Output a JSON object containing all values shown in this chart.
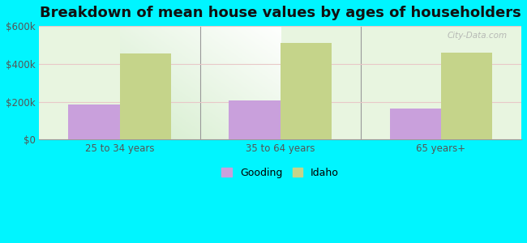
{
  "title": "Breakdown of mean house values by ages of householders",
  "categories": [
    "25 to 34 years",
    "35 to 64 years",
    "65 years+"
  ],
  "gooding_values": [
    185000,
    205000,
    163000
  ],
  "idaho_values": [
    455000,
    510000,
    460000
  ],
  "gooding_color": "#c9a0dc",
  "idaho_color": "#c5d48a",
  "ylim": [
    0,
    600000
  ],
  "yticks": [
    0,
    200000,
    400000,
    600000
  ],
  "ytick_labels": [
    "$0",
    "$200k",
    "$400k",
    "$600k"
  ],
  "legend_labels": [
    "Gooding",
    "Idaho"
  ],
  "background_color": "#00f5ff",
  "plot_bg_color": "#e8f5e0",
  "title_fontsize": 13,
  "bar_width": 0.32,
  "grid_color": "#e8c8c8",
  "watermark": "City-Data.com"
}
